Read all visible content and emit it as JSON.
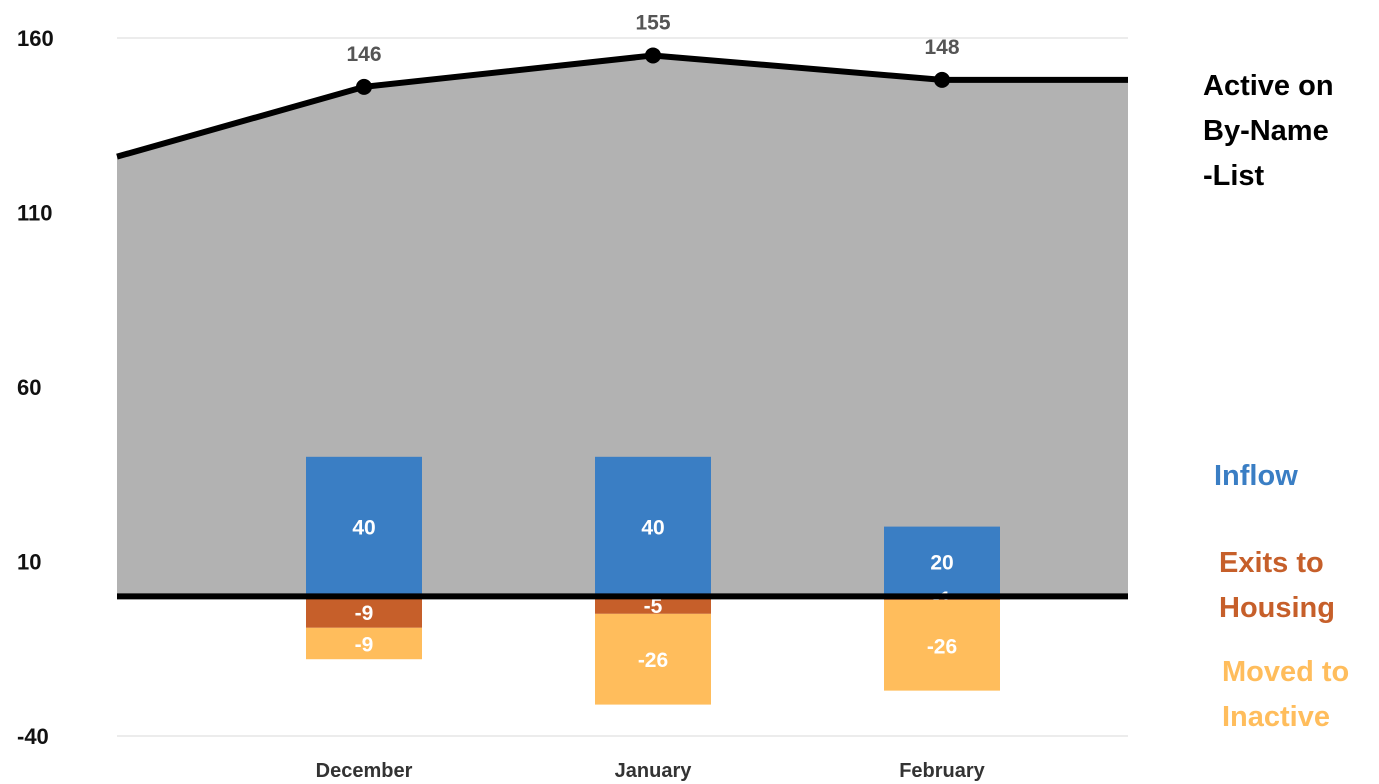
{
  "chart_data": {
    "type": "area",
    "categories": [
      "December",
      "January",
      "February"
    ],
    "yticks": [
      160,
      110,
      60,
      10,
      -40
    ],
    "ylim": [
      -40,
      160
    ],
    "area": {
      "name_lines": [
        "Active on",
        "By-Name",
        "-List"
      ],
      "start_value": 126,
      "values": [
        146,
        155,
        148
      ],
      "end_value": 148,
      "labels": [
        "146",
        "155",
        "148"
      ],
      "fill_color": "#b2b2b2",
      "line_color": "#000000"
    },
    "series": [
      {
        "name_lines": [
          "Inflow"
        ],
        "color": "#3a7ec4",
        "values": [
          40,
          40,
          20
        ],
        "labels": [
          "40",
          "40",
          "20"
        ]
      },
      {
        "name_lines": [
          "Exits to",
          "Housing"
        ],
        "color": "#c65f2a",
        "values": [
          -9,
          -5,
          -1
        ],
        "labels": [
          "-9",
          "-5",
          "-1"
        ]
      },
      {
        "name_lines": [
          "Moved to",
          "Inactive"
        ],
        "color": "#ffbd5c",
        "values": [
          -9,
          -26,
          -26
        ],
        "labels": [
          "-9",
          "-26",
          "-26"
        ]
      }
    ],
    "grid": true
  }
}
